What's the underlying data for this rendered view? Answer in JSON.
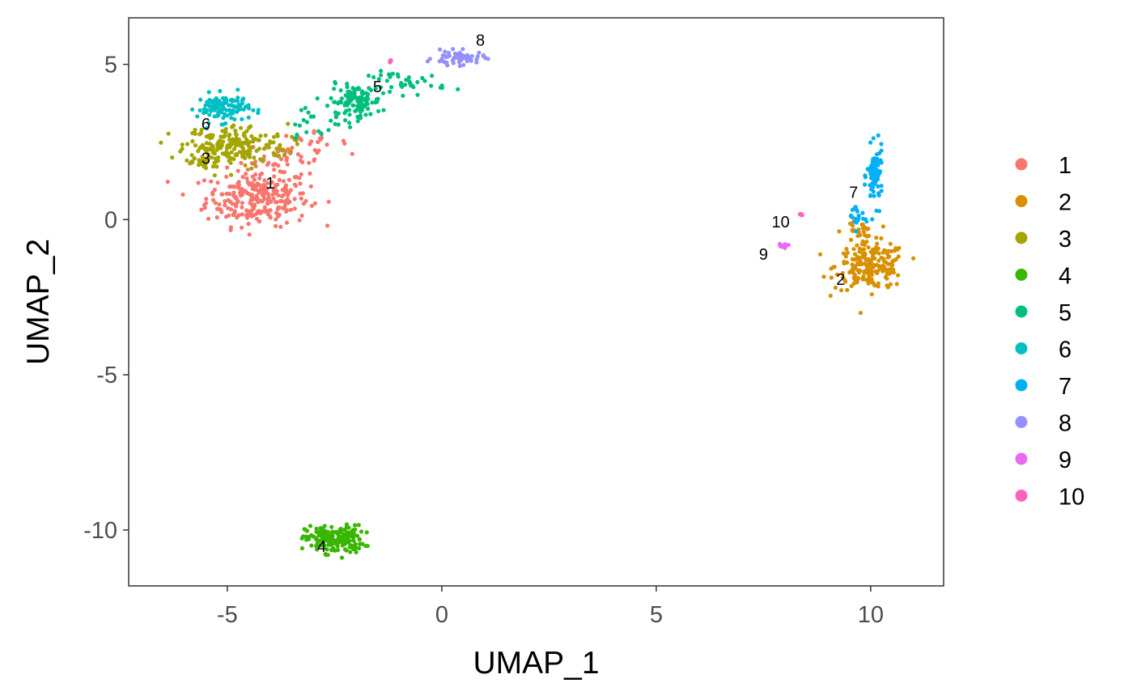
{
  "chart_data": {
    "type": "scatter",
    "xlabel": "UMAP_1",
    "ylabel": "UMAP_2",
    "xlim": [
      -7.3,
      11.7
    ],
    "ylim": [
      -11.8,
      6.5
    ],
    "x_ticks": [
      {
        "value": -5,
        "label": "-5"
      },
      {
        "value": 0,
        "label": "0"
      },
      {
        "value": 5,
        "label": "5"
      },
      {
        "value": 10,
        "label": "10"
      }
    ],
    "y_ticks": [
      {
        "value": 5,
        "label": "5"
      },
      {
        "value": 0,
        "label": "0"
      },
      {
        "value": -5,
        "label": "-5"
      },
      {
        "value": -10,
        "label": "-10"
      }
    ],
    "grid": false,
    "legend_position": "right",
    "clusters": [
      {
        "name": "1",
        "color": "#F8766D",
        "label_pos": [
          -4.0,
          1.0
        ],
        "blobs": [
          {
            "cx": -4.3,
            "cy": 0.7,
            "sx": 0.8,
            "sy": 0.6,
            "n": 260
          },
          {
            "cx": -3.7,
            "cy": 1.9,
            "sx": 0.6,
            "sy": 0.4,
            "n": 45
          },
          {
            "cx": -3.1,
            "cy": 2.5,
            "sx": 0.6,
            "sy": 0.2,
            "n": 20
          }
        ]
      },
      {
        "name": "2",
        "color": "#D89000",
        "label_pos": [
          9.3,
          -2.1
        ],
        "blobs": [
          {
            "cx": 10.0,
            "cy": -1.5,
            "sx": 0.55,
            "sy": 0.5,
            "n": 200
          },
          {
            "cx": 9.7,
            "cy": -0.4,
            "sx": 0.25,
            "sy": 0.3,
            "n": 25
          }
        ]
      },
      {
        "name": "3",
        "color": "#A3A500",
        "label_pos": [
          -5.5,
          1.8
        ],
        "blobs": [
          {
            "cx": -4.8,
            "cy": 2.4,
            "sx": 0.8,
            "sy": 0.45,
            "n": 180
          },
          {
            "cx": -5.6,
            "cy": 2.0,
            "sx": 0.35,
            "sy": 0.4,
            "n": 40
          }
        ]
      },
      {
        "name": "4",
        "color": "#39B600",
        "label_pos": [
          -2.8,
          -10.7
        ],
        "blobs": [
          {
            "cx": -2.5,
            "cy": -10.3,
            "sx": 0.45,
            "sy": 0.3,
            "n": 180
          }
        ]
      },
      {
        "name": "5",
        "color": "#00BF7D",
        "label_pos": [
          -1.5,
          4.1
        ],
        "blobs": [
          {
            "cx": -2.0,
            "cy": 3.8,
            "sx": 0.4,
            "sy": 0.35,
            "n": 110
          },
          {
            "cx": -0.8,
            "cy": 4.4,
            "sx": 0.6,
            "sy": 0.25,
            "n": 40
          },
          {
            "cx": -3.0,
            "cy": 3.1,
            "sx": 0.6,
            "sy": 0.3,
            "n": 20
          }
        ]
      },
      {
        "name": "6",
        "color": "#00BFC4",
        "label_pos": [
          -5.5,
          2.9
        ],
        "blobs": [
          {
            "cx": -5.1,
            "cy": 3.6,
            "sx": 0.4,
            "sy": 0.3,
            "n": 110
          }
        ]
      },
      {
        "name": "7",
        "color": "#00B0F6",
        "label_pos": [
          9.6,
          0.7
        ],
        "blobs": [
          {
            "cx": 10.1,
            "cy": 1.4,
            "sx": 0.12,
            "sy": 0.6,
            "n": 80
          },
          {
            "cx": 9.7,
            "cy": 0.1,
            "sx": 0.15,
            "sy": 0.3,
            "n": 20
          }
        ]
      },
      {
        "name": "8",
        "color": "#9590FF",
        "label_pos": [
          0.9,
          5.6
        ],
        "blobs": [
          {
            "cx": 0.4,
            "cy": 5.2,
            "sx": 0.4,
            "sy": 0.15,
            "n": 60
          }
        ]
      },
      {
        "name": "9",
        "color": "#E76BF3",
        "label_pos": [
          7.5,
          -1.3
        ],
        "blobs": [
          {
            "cx": 7.95,
            "cy": -0.85,
            "sx": 0.08,
            "sy": 0.05,
            "n": 12
          }
        ]
      },
      {
        "name": "10",
        "color": "#FF62BC",
        "label_pos": [
          7.9,
          -0.25
        ],
        "blobs": [
          {
            "cx": 8.4,
            "cy": 0.18,
            "sx": 0.05,
            "sy": 0.04,
            "n": 6
          },
          {
            "cx": -1.2,
            "cy": 5.1,
            "sx": 0.05,
            "sy": 0.03,
            "n": 5
          }
        ]
      }
    ]
  }
}
